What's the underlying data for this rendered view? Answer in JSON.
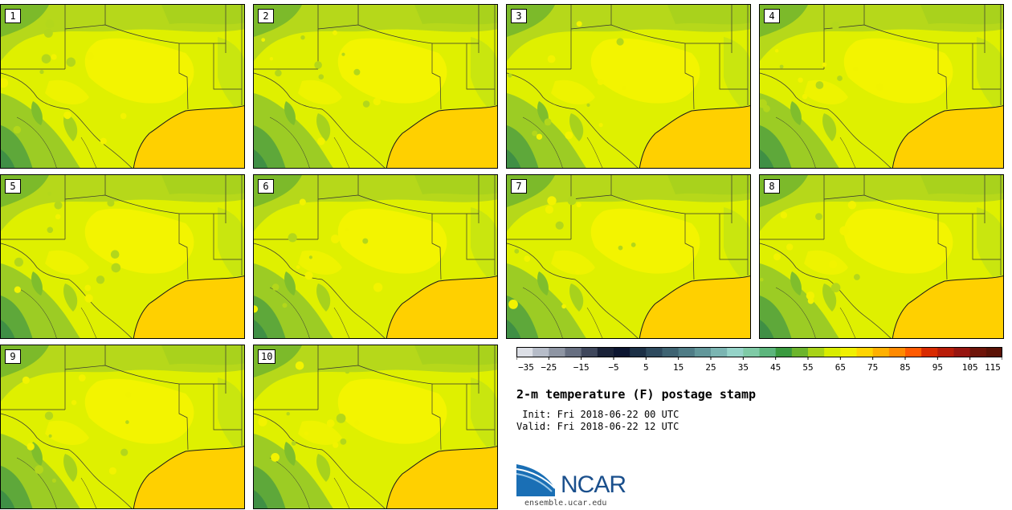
{
  "panels": [
    {
      "label": "1"
    },
    {
      "label": "2"
    },
    {
      "label": "3"
    },
    {
      "label": "4"
    },
    {
      "label": "5"
    },
    {
      "label": "6"
    },
    {
      "label": "7"
    },
    {
      "label": "8"
    },
    {
      "label": "9"
    },
    {
      "label": "10"
    }
  ],
  "colorbar": {
    "ticks": [
      "−35",
      "−25",
      "−15",
      "−5",
      "5",
      "15",
      "25",
      "35",
      "45",
      "55",
      "65",
      "75",
      "85",
      "95",
      "105",
      "115"
    ],
    "colors": [
      "#dcdfe6",
      "#b6bcc8",
      "#8e95a3",
      "#676f81",
      "#3f475c",
      "#1a2238",
      "#0c1530",
      "#1c3046",
      "#2e4a5e",
      "#3e6372",
      "#4f7c86",
      "#62979a",
      "#7bb5b2",
      "#95d3c8",
      "#7fcaa6",
      "#5cb57c",
      "#3a9a3f",
      "#6cb52c",
      "#a8d318",
      "#d8ec00",
      "#f0f000",
      "#ffd400",
      "#ffb000",
      "#ff8a00",
      "#ff5a00",
      "#d82a00",
      "#b81c08",
      "#961510",
      "#6e1409",
      "#5a1206"
    ]
  },
  "title": "2-m temperature (F) postage stamp",
  "init": " Init: Fri 2018-06-22 00 UTC",
  "valid": "Valid: Fri 2018-06-22 12 UTC",
  "logo": {
    "name": "NCAR",
    "url": "ensemble.ucar.edu"
  }
}
